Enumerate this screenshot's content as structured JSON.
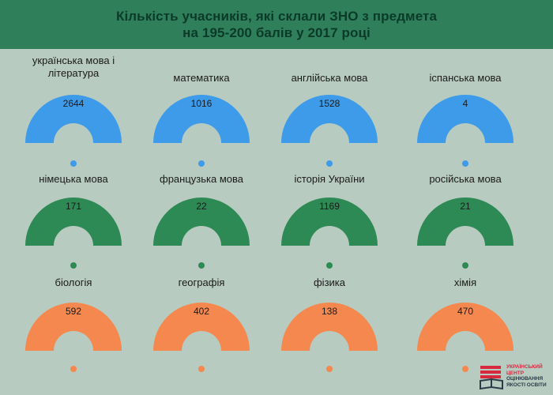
{
  "header": {
    "title_line1": "Кількість учасників, які склали ЗНО з предмета",
    "title_line2": "на 195-200 балів у 2017 році"
  },
  "colors": {
    "background": "#b8cbc0",
    "header": "#2f7f5b",
    "header_text": "#0b3b28",
    "row_colors": [
      "#3d9be9",
      "#2e8a55",
      "#f4884e"
    ]
  },
  "chart_data": {
    "type": "gauge",
    "title": "Кількість учасників, які склали ЗНО з предмета на 195-200 балів у 2017 році",
    "categories": [
      "українська мова і література",
      "математика",
      "англійська мова",
      "іспанська мова",
      "німецька мова",
      "французька мова",
      "історія України",
      "російська мова",
      "біологія",
      "географія",
      "фізика",
      "хімія"
    ],
    "values": [
      2644,
      1016,
      1528,
      4,
      171,
      22,
      1169,
      21,
      592,
      402,
      138,
      470
    ],
    "items": [
      {
        "label": "українська мова і\nлітература",
        "value": 2644,
        "row": 0
      },
      {
        "label": "математика",
        "value": 1016,
        "row": 0
      },
      {
        "label": "англійська мова",
        "value": 1528,
        "row": 0
      },
      {
        "label": "іспанська мова",
        "value": 4,
        "row": 0
      },
      {
        "label": "німецька мова",
        "value": 171,
        "row": 1
      },
      {
        "label": "французька мова",
        "value": 22,
        "row": 1
      },
      {
        "label": "історія України",
        "value": 1169,
        "row": 1
      },
      {
        "label": "російська мова",
        "value": 21,
        "row": 1
      },
      {
        "label": "біологія",
        "value": 592,
        "row": 2
      },
      {
        "label": "географія",
        "value": 402,
        "row": 2
      },
      {
        "label": "фізика",
        "value": 138,
        "row": 2
      },
      {
        "label": "хімія",
        "value": 470,
        "row": 2
      }
    ]
  },
  "logo": {
    "line1": "УКРАЇНСЬКИЙ",
    "line2": "ЦЕНТР",
    "line3": "ОЦІНЮВАННЯ",
    "line4": "ЯКОСТІ ОСВІТИ"
  }
}
